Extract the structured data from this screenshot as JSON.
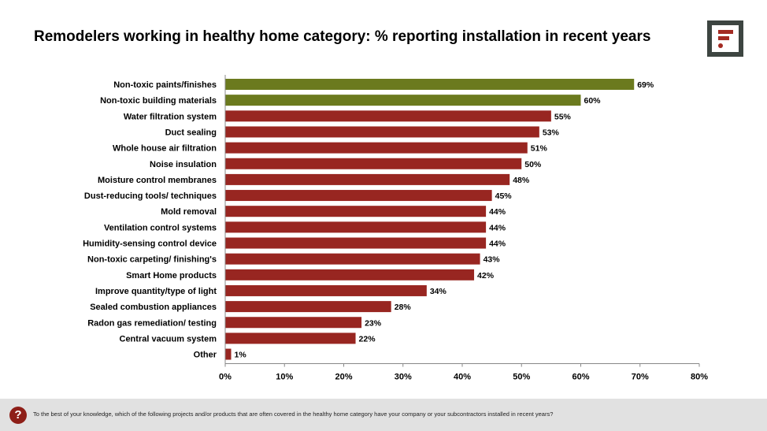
{
  "title": "Remodelers working in healthy home category: % reporting installation in recent years",
  "logo": {
    "name": "f-logo-icon"
  },
  "footer": {
    "icon": "?",
    "question": "To the best of your knowledge, which of the following projects and/or products that are often covered in the healthy home category have your company or your subcontractors installed in recent years?"
  },
  "colors": {
    "highlight": "#6b7a1e",
    "default": "#982621"
  },
  "chart_data": {
    "type": "bar",
    "orientation": "horizontal",
    "title": "Remodelers working in healthy home category: % reporting installation in recent years",
    "categories": [
      "Non-toxic paints/finishes",
      "Non-toxic building materials",
      "Water filtration system",
      "Duct sealing",
      "Whole house air filtration",
      "Noise insulation",
      "Moisture control membranes",
      "Dust-reducing tools/ techniques",
      "Mold removal",
      "Ventilation control systems",
      "Humidity-sensing control device",
      "Non-toxic carpeting/ finishing's",
      "Smart Home products",
      "Improve quantity/type of light",
      "Sealed combustion appliances",
      "Radon gas remediation/ testing",
      "Central vacuum system",
      "Other"
    ],
    "values": [
      69,
      60,
      55,
      53,
      51,
      50,
      48,
      45,
      44,
      44,
      44,
      43,
      42,
      34,
      28,
      23,
      22,
      1
    ],
    "labels": [
      "69%",
      "60%",
      "55%",
      "53%",
      "51%",
      "50%",
      "48%",
      "45%",
      "44%",
      "44%",
      "44%",
      "43%",
      "42%",
      "34%",
      "28%",
      "23%",
      "22%",
      "1%"
    ],
    "highlighted": [
      true,
      true,
      false,
      false,
      false,
      false,
      false,
      false,
      false,
      false,
      false,
      false,
      false,
      false,
      false,
      false,
      false,
      false
    ],
    "xlim": [
      0,
      80
    ],
    "xticks": [
      "0%",
      "10%",
      "20%",
      "30%",
      "40%",
      "50%",
      "60%",
      "70%",
      "80%"
    ],
    "xlabel": "",
    "ylabel": "",
    "grid": false,
    "legend": "none"
  }
}
